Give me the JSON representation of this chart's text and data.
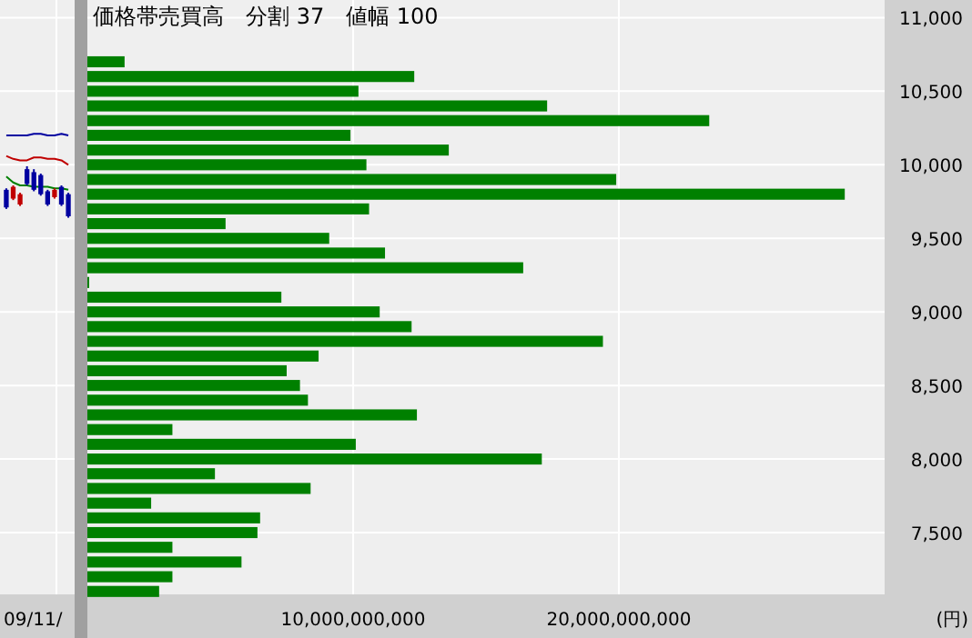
{
  "chart_data": [
    {
      "type": "candlestick",
      "categories": [
        null,
        null,
        null,
        null,
        null,
        null,
        null,
        null,
        null,
        null
      ],
      "ohlc": [
        [
          9830,
          9840,
          9700,
          9710
        ],
        [
          9770,
          9860,
          9760,
          9850
        ],
        [
          9730,
          9810,
          9720,
          9800
        ],
        [
          9970,
          9990,
          9860,
          9870
        ],
        [
          9950,
          9970,
          9820,
          9830
        ],
        [
          9930,
          9940,
          9790,
          9800
        ],
        [
          9820,
          9830,
          9720,
          9730
        ],
        [
          9780,
          9840,
          9770,
          9830
        ],
        [
          9850,
          9860,
          9720,
          9730
        ],
        [
          9800,
          9810,
          9640,
          9650
        ]
      ],
      "series": [
        {
          "type": "line",
          "color": "#0000a0",
          "values": [
            10200,
            10200,
            10200,
            10200,
            10210,
            10210,
            10200,
            10200,
            10210,
            10200
          ]
        },
        {
          "type": "line",
          "color": "#c00000",
          "values": [
            10060,
            10040,
            10030,
            10030,
            10050,
            10050,
            10040,
            10040,
            10030,
            10000
          ]
        },
        {
          "type": "line",
          "color": "#008000",
          "values": [
            9920,
            9880,
            9860,
            9860,
            9850,
            9850,
            9850,
            9840,
            9840,
            9830
          ]
        }
      ],
      "ylim": [
        7080,
        11120
      ],
      "yticks": [
        {
          "value": 7500,
          "label": null
        },
        {
          "value": 8000,
          "label": null
        },
        {
          "value": 8500,
          "label": null
        },
        {
          "value": 9000,
          "label": null
        },
        {
          "value": 9500,
          "label": null
        },
        {
          "value": 10000,
          "label": null
        },
        {
          "value": 10500,
          "label": null
        },
        {
          "value": 11000,
          "label": null
        }
      ],
      "tick_labels": false,
      "grid": true,
      "annotations": [
        "09/11/"
      ]
    },
    {
      "type": "bar",
      "orientation": "horizontal",
      "title": "価格帯売買高　分割 37　値幅 100",
      "xlabel": "(円)",
      "x": [
        10700,
        10600,
        10500,
        10400,
        10300,
        10200,
        10100,
        10000,
        9900,
        9800,
        9700,
        9600,
        9500,
        9400,
        9300,
        9200,
        9100,
        9000,
        8900,
        8800,
        8700,
        8600,
        8500,
        8400,
        8300,
        8200,
        8100,
        8000,
        7900,
        7800,
        7700,
        7600,
        7500,
        7400,
        7300,
        7200,
        7100
      ],
      "values": [
        1400000000,
        12300000000,
        10200000000,
        17300000000,
        23400000000,
        9900000000,
        13600000000,
        10500000000,
        19900000000,
        28500000000,
        10600000000,
        5200000000,
        9100000000,
        11200000000,
        16400000000,
        50000000,
        7300000000,
        11000000000,
        12200000000,
        19400000000,
        8700000000,
        7500000000,
        8000000000,
        8300000000,
        12400000000,
        3200000000,
        10100000000,
        17100000000,
        4800000000,
        8400000000,
        2400000000,
        6500000000,
        6400000000,
        3200000000,
        5800000000,
        3200000000,
        2700000000
      ],
      "color": "#008000",
      "xlim": [
        0,
        30000000000
      ],
      "xticks": [
        {
          "value": 10000000000,
          "label": "10,000,000,000"
        },
        {
          "value": 20000000000,
          "label": "20,000,000,000"
        }
      ],
      "ylim": [
        7080,
        11120
      ],
      "yticks": [
        {
          "value": 7500,
          "label": "7,500"
        },
        {
          "value": 8000,
          "label": "8,000"
        },
        {
          "value": 8500,
          "label": "8,500"
        },
        {
          "value": 9000,
          "label": "9,000"
        },
        {
          "value": 9500,
          "label": "9,500"
        },
        {
          "value": 10000,
          "label": "10,000"
        },
        {
          "value": 10500,
          "label": "10,500"
        },
        {
          "value": 11000,
          "label": "11,000"
        }
      ],
      "grid": true
    }
  ]
}
